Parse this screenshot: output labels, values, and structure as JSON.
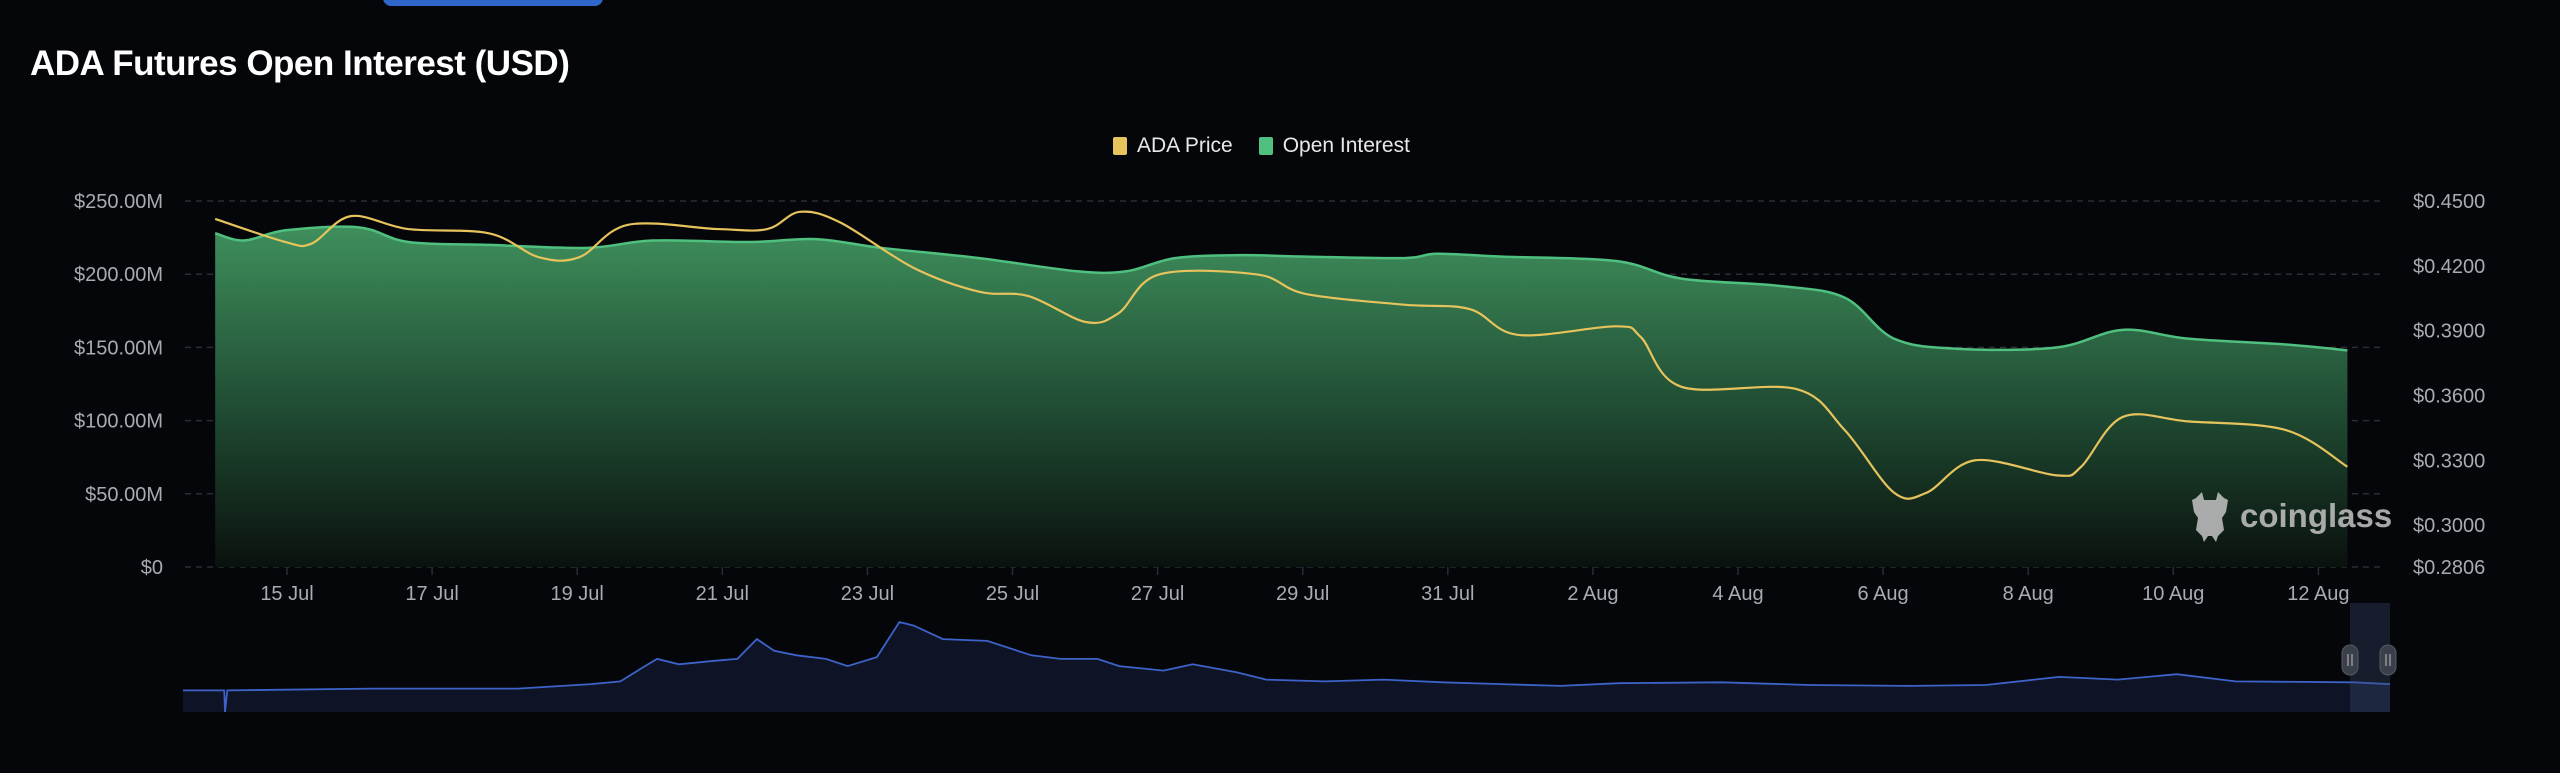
{
  "title": "ADA Futures Open Interest (USD)",
  "watermark": "coinglass",
  "chart_data": {
    "type": "line",
    "title": "ADA Futures Open Interest (USD)",
    "x_unit": "days since 15 Jul",
    "x_ticks": [
      {
        "x": 0,
        "label": "15 Jul"
      },
      {
        "x": 2,
        "label": "17 Jul"
      },
      {
        "x": 4,
        "label": "19 Jul"
      },
      {
        "x": 6,
        "label": "21 Jul"
      },
      {
        "x": 8,
        "label": "23 Jul"
      },
      {
        "x": 10,
        "label": "25 Jul"
      },
      {
        "x": 12,
        "label": "27 Jul"
      },
      {
        "x": 14,
        "label": "29 Jul"
      },
      {
        "x": 16,
        "label": "31 Jul"
      },
      {
        "x": 18,
        "label": "2 Aug"
      },
      {
        "x": 20,
        "label": "4 Aug"
      },
      {
        "x": 22,
        "label": "6 Aug"
      },
      {
        "x": 24,
        "label": "8 Aug"
      },
      {
        "x": 26,
        "label": "10 Aug"
      },
      {
        "x": 28,
        "label": "12 Aug"
      }
    ],
    "xlim": [
      -1,
      28.4
    ],
    "y_left": {
      "label": "Open Interest",
      "lim": [
        0,
        250
      ],
      "ticks": [
        {
          "v": 0,
          "label": "$0"
        },
        {
          "v": 50,
          "label": "$50.00M"
        },
        {
          "v": 100,
          "label": "$100.00M"
        },
        {
          "v": 150,
          "label": "$150.00M"
        },
        {
          "v": 200,
          "label": "$200.00M"
        },
        {
          "v": 250,
          "label": "$250.00M"
        }
      ]
    },
    "y_right": {
      "label": "ADA Price",
      "lim": [
        0.2806,
        0.45
      ],
      "ticks": [
        {
          "v": 0.2806,
          "label": "$0.2806"
        },
        {
          "v": 0.3,
          "label": "$0.3000"
        },
        {
          "v": 0.33,
          "label": "$0.3300"
        },
        {
          "v": 0.36,
          "label": "$0.3600"
        },
        {
          "v": 0.39,
          "label": "$0.3900"
        },
        {
          "v": 0.42,
          "label": "$0.4200"
        },
        {
          "v": 0.45,
          "label": "$0.4500"
        }
      ]
    },
    "grid": true,
    "legend_position": "top-center",
    "series": [
      {
        "name": "ADA Price",
        "axis": "right",
        "color": "#e6c35c",
        "x": [
          -0.99,
          -0.02,
          0.34,
          0.88,
          1.67,
          2.79,
          3.47,
          4.03,
          4.7,
          5.94,
          6.62,
          7.07,
          7.63,
          8.64,
          9.54,
          10.22,
          11.01,
          11.46,
          12.02,
          13.37,
          14.04,
          15.4,
          16.3,
          16.97,
          18.32,
          18.66,
          19.22,
          20.8,
          21.47,
          22.15,
          22.6,
          23.27,
          24.4,
          24.73,
          25.3,
          26.2,
          27.55,
          28.4
        ],
        "y": [
          0.4417,
          0.431,
          0.4303,
          0.443,
          0.437,
          0.435,
          0.424,
          0.424,
          0.439,
          0.437,
          0.437,
          0.445,
          0.44,
          0.419,
          0.408,
          0.406,
          0.394,
          0.398,
          0.416,
          0.416,
          0.407,
          0.402,
          0.4,
          0.388,
          0.392,
          0.387,
          0.364,
          0.363,
          0.344,
          0.315,
          0.315,
          0.33,
          0.323,
          0.327,
          0.35,
          0.348,
          0.344,
          0.327
        ]
      },
      {
        "name": "Open Interest",
        "axis": "left",
        "color": "#4fc07f",
        "unit": "M USD",
        "x": [
          -0.99,
          -0.59,
          -0.02,
          0.99,
          1.67,
          2.79,
          4.14,
          5.04,
          6.39,
          7.29,
          8.19,
          9.54,
          10.89,
          11.57,
          12.24,
          13.14,
          14.04,
          15.4,
          15.85,
          16.75,
          18.32,
          19.22,
          20.57,
          21.47,
          22.15,
          23.05,
          24.4,
          25.3,
          26.2,
          27.55,
          28.4
        ],
        "y": [
          228,
          223,
          230,
          232,
          222,
          220,
          218,
          223,
          222,
          224,
          218,
          211,
          202,
          202,
          211,
          213,
          212,
          211,
          214,
          212,
          209,
          197,
          192,
          184,
          156,
          149,
          150,
          162,
          156,
          152,
          148
        ]
      }
    ],
    "navigator": {
      "name": "Open Interest overview",
      "color": "#3d63c9",
      "x": [
        -1.0,
        -0.45,
        -0.44,
        -0.41,
        1.5,
        3.46,
        4.44,
        4.83,
        5.12,
        5.32,
        5.61,
        6.1,
        6.39,
        6.65,
        6.88,
        7.18,
        7.57,
        7.86,
        8.25,
        8.55,
        8.74,
        9.13,
        9.72,
        10.31,
        10.7,
        11.19,
        11.48,
        12.07,
        12.46,
        13.05,
        13.44,
        14.22,
        15.0,
        15.79,
        16.57,
        17.36,
        18.14,
        19.51,
        20.68,
        22.05,
        23.03,
        24.01,
        24.79,
        25.58,
        26.36,
        27.93,
        28.42
      ],
      "y": [
        0.24,
        0.24,
        0,
        0.24,
        0.26,
        0.26,
        0.31,
        0.34,
        0.49,
        0.59,
        0.53,
        0.57,
        0.59,
        0.81,
        0.68,
        0.63,
        0.59,
        0.51,
        0.61,
        1.0,
        0.96,
        0.81,
        0.79,
        0.63,
        0.59,
        0.59,
        0.51,
        0.46,
        0.53,
        0.44,
        0.36,
        0.34,
        0.36,
        0.33,
        0.31,
        0.29,
        0.32,
        0.33,
        0.3,
        0.29,
        0.3,
        0.39,
        0.36,
        0.42,
        0.34,
        0.33,
        0.31
      ]
    }
  }
}
